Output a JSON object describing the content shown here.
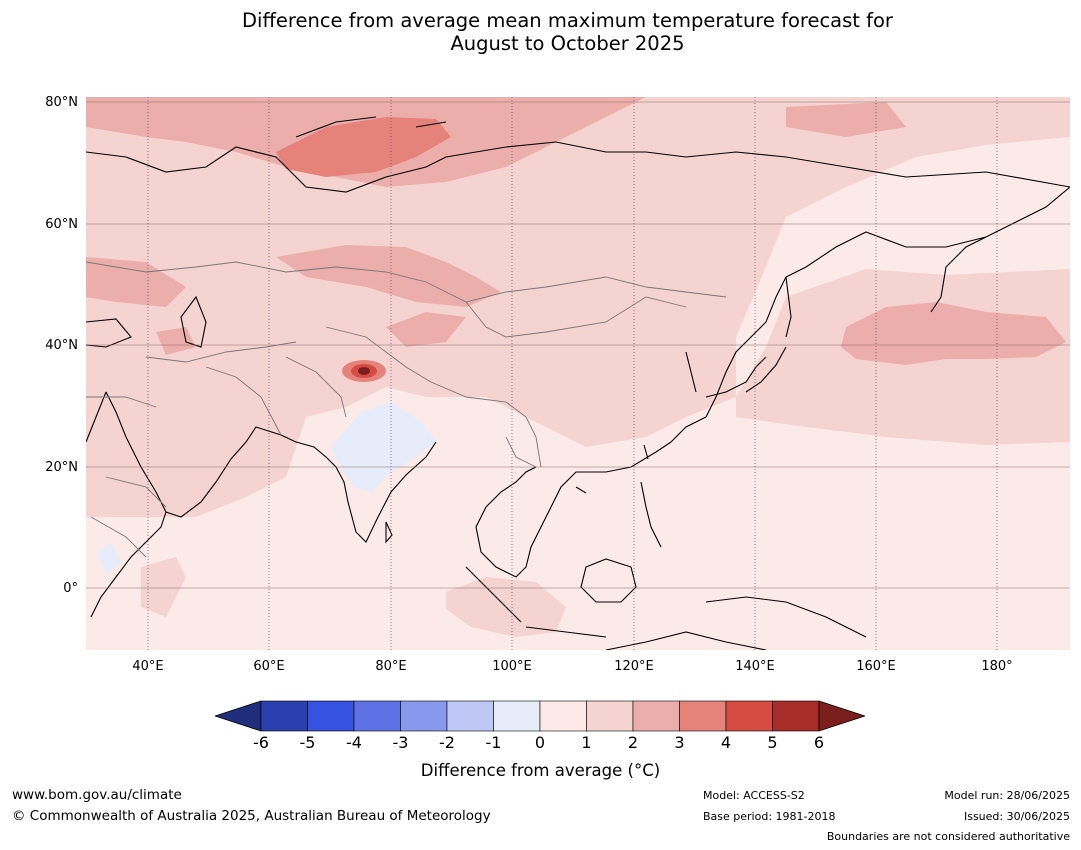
{
  "title": {
    "line1": "Difference from average mean maximum temperature forecast for",
    "line2": "August to October 2025"
  },
  "map": {
    "lat_labels": [
      "80°N",
      "60°N",
      "40°N",
      "20°N",
      "0°"
    ],
    "lon_labels": [
      "40°E",
      "60°E",
      "80°E",
      "100°E",
      "120°E",
      "140°E",
      "160°E",
      "180°"
    ]
  },
  "colorbar": {
    "ticks": [
      "-6",
      "-5",
      "-4",
      "-3",
      "-2",
      "-1",
      "0",
      "1",
      "2",
      "3",
      "4",
      "5",
      "6"
    ],
    "colors": [
      "#1f2d7c",
      "#2a3fb0",
      "#3552e0",
      "#5e72e6",
      "#8898ec",
      "#bfc8f4",
      "#e6ecfa",
      "#fde9e7",
      "#f5d3d1",
      "#ecaeab",
      "#e5827a",
      "#d64b42",
      "#a82c27",
      "#7a1f1c"
    ],
    "label": "Difference from average (°C)"
  },
  "footer": {
    "url": "www.bom.gov.au/climate",
    "copyright": "© Commonwealth of Australia 2025, Australian Bureau of Meteorology",
    "model": "Model: ACCESS-S2",
    "base_period": "Base period: 1981-2018",
    "model_run": "Model run: 28/06/2025",
    "issued": "Issued: 30/06/2025",
    "disclaimer": "Boundaries are not considered authoritative"
  }
}
